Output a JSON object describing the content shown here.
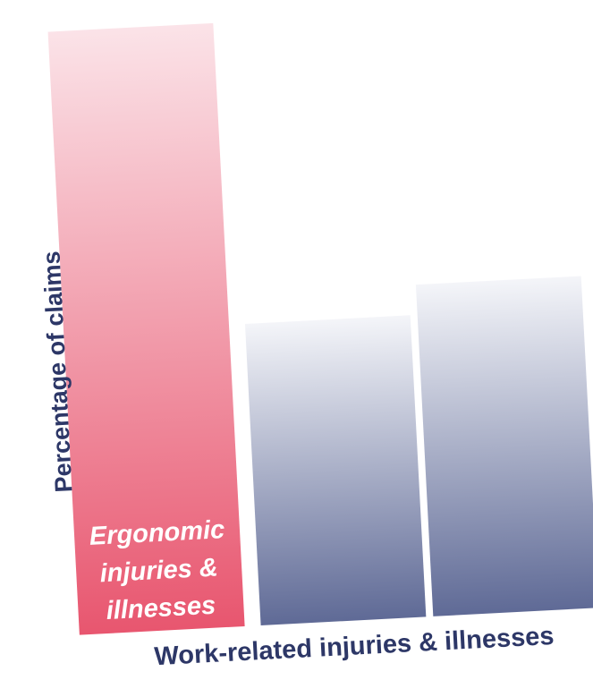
{
  "chart_data": {
    "type": "bar",
    "title": "",
    "xlabel": "Work-related injuries & illnesses",
    "ylabel": "Percentage of claims",
    "categories": [
      "Ergonomic injuries & illnesses",
      "",
      ""
    ],
    "bar_label_lines": [
      "Ergonomic",
      "injuries &",
      "illnesses"
    ],
    "values": [
      100,
      50,
      55
    ],
    "ylim": [
      0,
      100
    ],
    "grid": false,
    "legend": "none",
    "colors": {
      "highlight_top": "#fbe3e8",
      "highlight_bottom": "#e8566f",
      "other_top": "#f4f5f9",
      "other_bottom": "#5f6a96",
      "axis_text": "#2d3767",
      "bar_label_text": "#ffffff"
    }
  }
}
